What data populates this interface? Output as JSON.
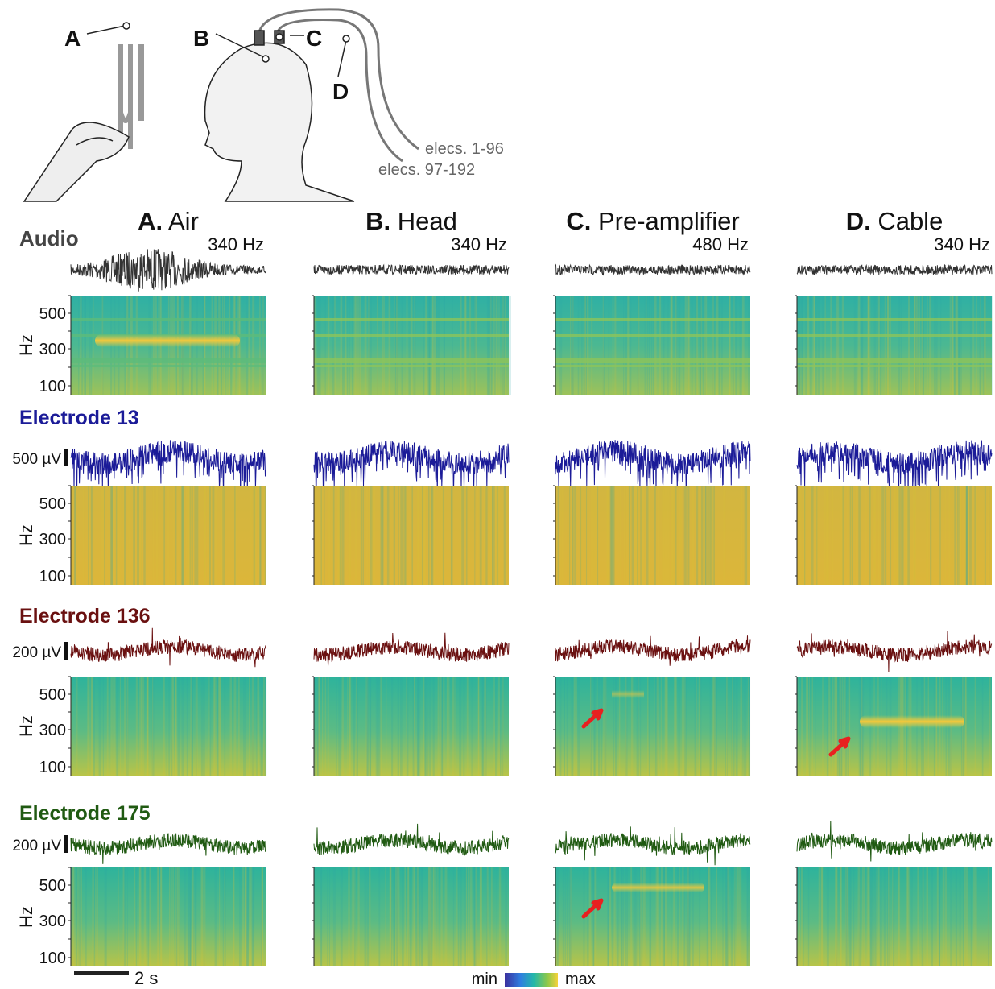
{
  "illustration": {
    "labels": [
      "A",
      "B",
      "C",
      "D"
    ],
    "cables": [
      "elecs. 1-96",
      "elecs. 97-192"
    ]
  },
  "columns": [
    {
      "letter": "A.",
      "name": "Air",
      "freq": "340 Hz"
    },
    {
      "letter": "B.",
      "name": "Head",
      "freq": "340 Hz"
    },
    {
      "letter": "C.",
      "name": "Pre-amplifier",
      "freq": "480 Hz"
    },
    {
      "letter": "D.",
      "name": "Cable",
      "freq": "340 Hz"
    }
  ],
  "rows": [
    {
      "label": "Audio"
    },
    {
      "label": "Electrode 13",
      "scale": "500 µV"
    },
    {
      "label": "Electrode 136",
      "scale": "200 µV"
    },
    {
      "label": "Electrode 175",
      "scale": "200 µV"
    }
  ],
  "hz_axis": {
    "label": "Hz",
    "ticks": [
      "500",
      "300",
      "100"
    ]
  },
  "time_scale": "2 s",
  "colorbar": {
    "min": "min",
    "max": "max"
  }
}
